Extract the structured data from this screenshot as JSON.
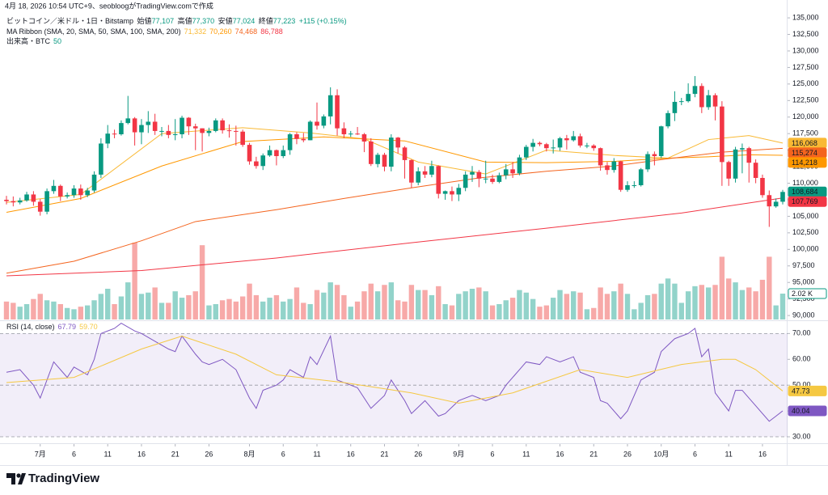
{
  "header": {
    "text": "4月 18, 2026 10:54 UTC+9、seobloogがTradingView.comで作成"
  },
  "chart_data": [
    {
      "type": "candlestick",
      "legend": {
        "symbol": "ビットコイン／米ドル・1日・Bitstamp",
        "open_label": "始値",
        "open": "77,107",
        "high_label": "高値",
        "high": "77,370",
        "low_label": "安値",
        "low": "77,024",
        "close_label": "終値",
        "close": "77,223",
        "change": "+115 (+0.15%)"
      },
      "up_color": "#089981",
      "down_color": "#f23645",
      "open": [
        107500,
        107300,
        107100,
        107400,
        108300,
        107200,
        105700,
        108800,
        109600,
        108000,
        108200,
        109200,
        108200,
        108900,
        111300,
        116000,
        117500,
        117400,
        119100,
        119800,
        117700,
        118800,
        119300,
        117900,
        117900,
        117300,
        117400,
        119900,
        118600,
        118300,
        117600,
        117900,
        119500,
        118000,
        117900,
        117800,
        115800,
        113300,
        112600,
        114200,
        115000,
        114100,
        115000,
        117400,
        116700,
        116500,
        119300,
        118700,
        120100,
        123300,
        118300,
        117400,
        117500,
        117400,
        116300,
        112900,
        114300,
        112500,
        116900,
        115400,
        113500,
        110100,
        111800,
        111300,
        112600,
        108400,
        108800,
        108300,
        109300,
        111300,
        111700,
        110700,
        110700,
        110200,
        111200,
        112100,
        111500,
        113900,
        115500,
        116100,
        115900,
        115300,
        115400,
        116800,
        116500,
        117100,
        115700,
        115700,
        115300,
        112700,
        112000,
        113300,
        109000,
        109700,
        109700,
        112100,
        114400,
        114100,
        118600,
        120600,
        122300,
        122400,
        123500,
        124700,
        121500,
        123300,
        121600,
        113200,
        110700,
        115100,
        115300,
        113100,
        110800,
        108200,
        106500,
        107200
      ],
      "high": [
        108100,
        108000,
        107800,
        108700,
        108800,
        107600,
        109200,
        110500,
        109800,
        108600,
        109700,
        109800,
        109300,
        111800,
        116800,
        118800,
        118100,
        119500,
        123200,
        120000,
        119700,
        120900,
        120500,
        118500,
        118800,
        119700,
        120200,
        120000,
        119000,
        118300,
        118400,
        119800,
        119800,
        118900,
        118700,
        118100,
        116100,
        114000,
        114500,
        115700,
        115100,
        115700,
        117600,
        117700,
        117600,
        119500,
        122200,
        120400,
        124500,
        124200,
        119200,
        117900,
        118500,
        117600,
        116800,
        114600,
        114600,
        117400,
        117000,
        115600,
        113600,
        112400,
        112600,
        113400,
        112700,
        108900,
        109500,
        109900,
        111800,
        112600,
        112000,
        113400,
        111300,
        111600,
        112900,
        113200,
        114300,
        115800,
        116700,
        116300,
        116100,
        116600,
        117000,
        117300,
        117900,
        117500,
        116100,
        115900,
        115400,
        113200,
        113800,
        113400,
        110300,
        110300,
        112300,
        114800,
        114800,
        118700,
        121000,
        123900,
        122900,
        125100,
        126200,
        125100,
        124100,
        123600,
        122400,
        113400,
        115500,
        116000,
        115500,
        113600,
        111300,
        108900,
        107700,
        109000
      ],
      "low": [
        106800,
        106500,
        106800,
        107200,
        106600,
        105100,
        105300,
        108400,
        107300,
        107700,
        107800,
        107500,
        107900,
        108600,
        110800,
        115300,
        116800,
        117200,
        118900,
        115700,
        115900,
        117600,
        117300,
        117100,
        116800,
        116500,
        116800,
        117300,
        115000,
        114800,
        117100,
        117700,
        117500,
        116900,
        115700,
        115500,
        112800,
        112200,
        112000,
        114000,
        112700,
        113800,
        114300,
        115900,
        116200,
        116500,
        118100,
        118300,
        118900,
        117200,
        116800,
        117000,
        117300,
        114700,
        112600,
        112400,
        111800,
        111800,
        114500,
        110700,
        109300,
        109700,
        110800,
        110900,
        107700,
        107500,
        107300,
        107300,
        108800,
        110200,
        109400,
        110000,
        109900,
        110000,
        110600,
        110800,
        111200,
        113500,
        114800,
        115600,
        114800,
        114500,
        114900,
        115100,
        116300,
        115400,
        115300,
        114900,
        111900,
        111300,
        111600,
        108700,
        108700,
        109300,
        109500,
        111700,
        112700,
        113800,
        118300,
        119400,
        121800,
        122200,
        123000,
        120600,
        121100,
        119500,
        109600,
        109600,
        110100,
        111500,
        110100,
        110000,
        107800,
        103400,
        106300,
        106800
      ],
      "close": [
        107300,
        107100,
        107400,
        108300,
        107200,
        105700,
        108800,
        109600,
        108000,
        108200,
        109200,
        108200,
        108900,
        111300,
        116000,
        117500,
        117400,
        119100,
        119800,
        117700,
        118800,
        119300,
        117900,
        117900,
        117300,
        117400,
        119900,
        118600,
        118300,
        117600,
        117900,
        119500,
        118000,
        117900,
        117800,
        115800,
        113300,
        112600,
        114200,
        115000,
        114100,
        115000,
        117400,
        116700,
        116500,
        119300,
        118700,
        120100,
        123300,
        118300,
        117400,
        117500,
        117400,
        116300,
        112900,
        114300,
        112500,
        116900,
        115400,
        113500,
        110100,
        111800,
        111300,
        112600,
        108400,
        108800,
        108300,
        109300,
        111300,
        111700,
        110700,
        110700,
        110200,
        111200,
        112100,
        111500,
        113900,
        115500,
        116100,
        115900,
        115300,
        115400,
        116800,
        116500,
        117100,
        115700,
        115700,
        115300,
        112700,
        112000,
        113300,
        109000,
        109700,
        109700,
        112100,
        114400,
        114100,
        118600,
        120600,
        122300,
        122400,
        123500,
        124700,
        121500,
        123300,
        121600,
        113200,
        110700,
        115100,
        115300,
        113100,
        110800,
        108200,
        106500,
        107200,
        108684
      ],
      "last_close_label": "108,684",
      "ylim": [
        89400,
        137700
      ],
      "yticks": [
        {
          "value": 90000,
          "label": "90,000"
        },
        {
          "value": 92500,
          "label": "92,500"
        },
        {
          "value": 95000,
          "label": "95,000"
        },
        {
          "value": 97500,
          "label": "97,500"
        },
        {
          "value": 100000,
          "label": "100,000"
        },
        {
          "value": 102500,
          "label": "102,500"
        },
        {
          "value": 105000,
          "label": "105,000"
        },
        {
          "value": 107500,
          "label": "107,500"
        },
        {
          "value": 110000,
          "label": "110,000"
        },
        {
          "value": 112500,
          "label": "112,500"
        },
        {
          "value": 115000,
          "label": "115,000"
        },
        {
          "value": 117500,
          "label": "117,500"
        },
        {
          "value": 120000,
          "label": "120,000"
        },
        {
          "value": 122500,
          "label": "122,500"
        },
        {
          "value": 125000,
          "label": "125,000"
        },
        {
          "value": 127500,
          "label": "127,500"
        },
        {
          "value": 130000,
          "label": "130,000"
        },
        {
          "value": 132500,
          "label": "132,500"
        },
        {
          "value": 135000,
          "label": "135,000"
        }
      ],
      "ma": {
        "title": "MA Ribbon (SMA, 20, SMA, 50, SMA, 100, SMA, 200)",
        "legend_values": [
          "71,332",
          "70,260",
          "74,468",
          "86,788"
        ],
        "series": [
          {
            "color": "#f9b934",
            "x": [
              0,
              11,
              23,
              35,
              45,
              53,
              61,
              71,
              80,
              90,
              98,
              104,
              110,
              115
            ],
            "values": [
              107100,
              108300,
              117500,
              118400,
              117600,
              116700,
              113200,
              111400,
              115000,
              114200,
              113800,
              116600,
              117200,
              116068
            ],
            "last_label": "116,068"
          },
          {
            "color": "#ff9800",
            "x": [
              0,
              11,
              23,
              35,
              47,
              59,
              71,
              80,
              90,
              98,
              104,
              110,
              115
            ],
            "values": [
              105600,
              107700,
              112600,
              116300,
              117000,
              116400,
              113200,
              113100,
              113300,
              113800,
              114000,
              114300,
              114218
            ],
            "last_label": "114,218"
          },
          {
            "color": "#f4641e",
            "x": [
              0,
              10,
              20,
              28,
              40,
              50,
              60,
              70,
              80,
              90,
              98,
              106,
              115
            ],
            "values": [
              96400,
              98200,
              101300,
              104200,
              106000,
              107700,
              109300,
              110800,
              111800,
              112600,
              113700,
              114700,
              115274
            ],
            "last_label": "115,274"
          },
          {
            "color": "#f23645",
            "x": [
              0,
              20,
              40,
              60,
              80,
              100,
              115
            ],
            "values": [
              96000,
              96800,
              98700,
              101000,
              103200,
              105500,
              107769
            ],
            "last_label": "107,769"
          }
        ]
      },
      "volume": {
        "title": "出来高・BTC",
        "current": "50",
        "up_color": "#92d3ca",
        "down_color": "#f7a9a8",
        "last_label": "2.02 K",
        "values": [
          1400,
          1300,
          1000,
          1200,
          1600,
          2000,
          1500,
          1400,
          1200,
          900,
          800,
          1000,
          1100,
          1500,
          2000,
          2400,
          1200,
          1800,
          2900,
          6000,
          2000,
          2100,
          2500,
          1300,
          1300,
          2200,
          1700,
          1900,
          2200,
          5800,
          1100,
          1200,
          1500,
          1600,
          1400,
          1800,
          2800,
          1900,
          1400,
          1700,
          1900,
          1400,
          1600,
          2500,
          1300,
          1200,
          2300,
          2100,
          2900,
          2700,
          1900,
          1000,
          1400,
          2200,
          2800,
          2200,
          2700,
          2900,
          1500,
          1400,
          2700,
          2300,
          2300,
          1900,
          2600,
          1200,
          1100,
          2000,
          2200,
          2400,
          2500,
          2200,
          1100,
          1200,
          1500,
          1700,
          2300,
          2100,
          1600,
          1000,
          1100,
          1700,
          2300,
          2000,
          2200,
          2100,
          800,
          900,
          2500,
          2000,
          2200,
          2800,
          2000,
          800,
          1300,
          1900,
          2000,
          2800,
          3200,
          2800,
          1300,
          2200,
          2600,
          2700,
          2500,
          2700,
          4900,
          3200,
          2900,
          2300,
          2500,
          2200,
          3100,
          4900,
          1100,
          2020
        ]
      }
    },
    {
      "type": "line",
      "title": "RSI (14, close)",
      "legend_values": [
        "67.79",
        "59.70"
      ],
      "series": [
        {
          "color": "#7e57c2",
          "x": [
            0,
            2,
            4,
            5,
            7,
            9,
            10,
            12,
            13,
            14,
            16,
            17,
            19,
            20,
            22,
            24,
            25,
            26,
            28,
            29,
            30,
            32,
            34,
            36,
            37,
            38,
            40,
            41,
            42,
            44,
            45,
            46,
            48,
            49,
            51,
            52,
            54,
            56,
            57,
            59,
            60,
            62,
            64,
            65,
            67,
            69,
            71,
            73,
            74,
            76,
            77,
            79,
            80,
            82,
            84,
            85,
            87,
            88,
            89,
            91,
            92,
            94,
            96,
            97,
            99,
            101,
            102,
            103,
            104,
            105,
            107,
            108,
            109,
            111,
            113,
            114,
            115
          ],
          "values": [
            55,
            56,
            50,
            45,
            59,
            53,
            57,
            54,
            60,
            70,
            72,
            74,
            71,
            70,
            67,
            64,
            63,
            69,
            62,
            59,
            58,
            60,
            56,
            45,
            41,
            48,
            50,
            52,
            56,
            53,
            61,
            58,
            69,
            52,
            50,
            49,
            41,
            46,
            52,
            44,
            39,
            44,
            38,
            39,
            44,
            46,
            44,
            46,
            50,
            56,
            59,
            58,
            61,
            59,
            61,
            55,
            53,
            44,
            43,
            37,
            40,
            52,
            55,
            63,
            68,
            70,
            72,
            61,
            64,
            47,
            40,
            48,
            48,
            42,
            36,
            38,
            40.04
          ],
          "last_label": "40.04"
        },
        {
          "color": "#f5c842",
          "x": [
            0,
            10,
            20,
            26,
            34,
            40,
            50,
            60,
            67,
            75,
            85,
            92,
            100,
            106,
            108,
            111,
            115
          ],
          "values": [
            51,
            53,
            64,
            69,
            62,
            54,
            51,
            47,
            43,
            47,
            56,
            53,
            58,
            60,
            60,
            56,
            47.73
          ],
          "last_label": "47.73"
        }
      ],
      "ylim": [
        27.5,
        74.5
      ],
      "yticks": [
        {
          "value": 70,
          "label": "70.00"
        },
        {
          "value": 60,
          "label": "60.00"
        },
        {
          "value": 50,
          "label": "50.00"
        },
        {
          "value": 40,
          "label": "40.00"
        },
        {
          "value": 30,
          "label": "30.00"
        }
      ],
      "xticks": [
        {
          "value": 5,
          "label": "7月"
        },
        {
          "value": 10,
          "label": "6"
        },
        {
          "value": 15,
          "label": "11"
        },
        {
          "value": 20,
          "label": "16"
        },
        {
          "value": 25,
          "label": "21"
        },
        {
          "value": 30,
          "label": "26"
        },
        {
          "value": 36,
          "label": "8月"
        },
        {
          "value": 41,
          "label": "6"
        },
        {
          "value": 46,
          "label": "11"
        },
        {
          "value": 51,
          "label": "16"
        },
        {
          "value": 56,
          "label": "21"
        },
        {
          "value": 61,
          "label": "26"
        },
        {
          "value": 67,
          "label": "9月"
        },
        {
          "value": 72,
          "label": "6"
        },
        {
          "value": 77,
          "label": "11"
        },
        {
          "value": 82,
          "label": "16"
        },
        {
          "value": 87,
          "label": "21"
        },
        {
          "value": 92,
          "label": "26"
        },
        {
          "value": 97,
          "label": "10月"
        },
        {
          "value": 102,
          "label": "6"
        },
        {
          "value": 107,
          "label": "11"
        },
        {
          "value": 112,
          "label": "16"
        }
      ]
    }
  ],
  "footer": {
    "brand": "TradingView"
  }
}
